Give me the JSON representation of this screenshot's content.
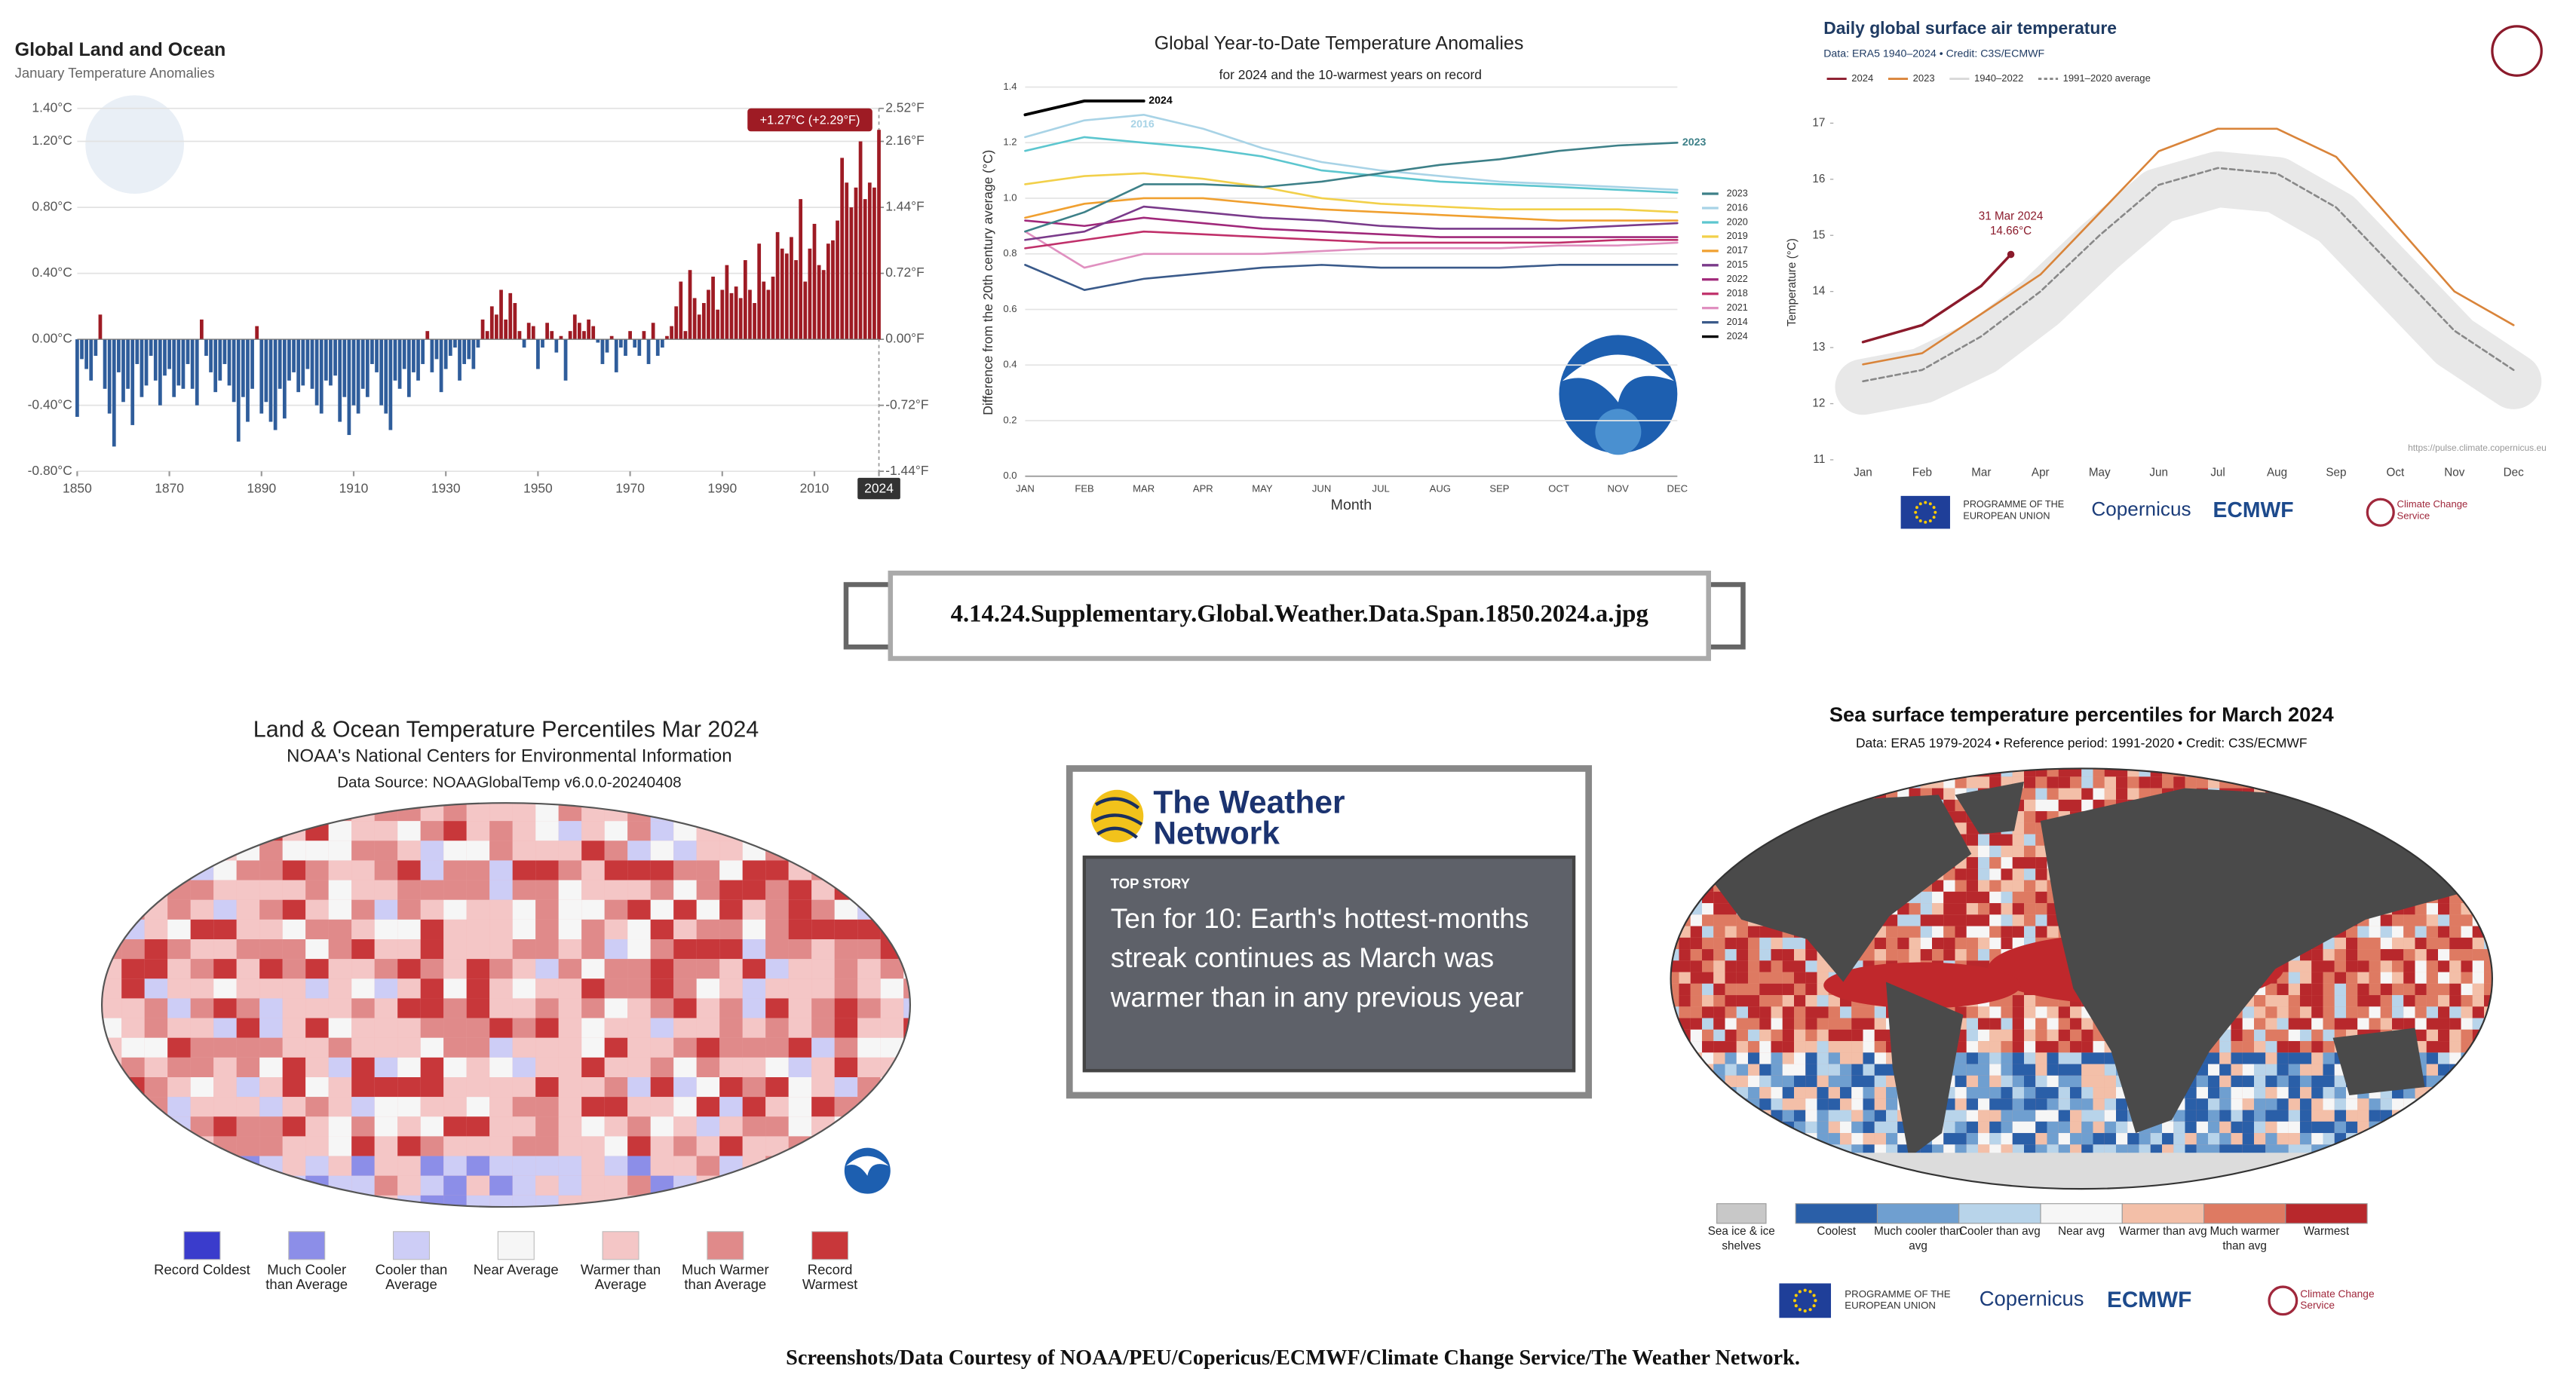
{
  "chart_data": [
    {
      "type": "bar",
      "title": "Global Land and Ocean",
      "subtitle": "January Temperature Anomalies",
      "x": [
        1850,
        1851,
        1852,
        1853,
        1854,
        1855,
        1856,
        1857,
        1858,
        1859,
        1860,
        1861,
        1862,
        1863,
        1864,
        1865,
        1866,
        1867,
        1868,
        1869,
        1870,
        1871,
        1872,
        1873,
        1874,
        1875,
        1876,
        1877,
        1878,
        1879,
        1880,
        1881,
        1882,
        1883,
        1884,
        1885,
        1886,
        1887,
        1888,
        1889,
        1890,
        1891,
        1892,
        1893,
        1894,
        1895,
        1896,
        1897,
        1898,
        1899,
        1900,
        1901,
        1902,
        1903,
        1904,
        1905,
        1906,
        1907,
        1908,
        1909,
        1910,
        1911,
        1912,
        1913,
        1914,
        1915,
        1916,
        1917,
        1918,
        1919,
        1920,
        1921,
        1922,
        1923,
        1924,
        1925,
        1926,
        1927,
        1928,
        1929,
        1930,
        1931,
        1932,
        1933,
        1934,
        1935,
        1936,
        1937,
        1938,
        1939,
        1940,
        1941,
        1942,
        1943,
        1944,
        1945,
        1946,
        1947,
        1948,
        1949,
        1950,
        1951,
        1952,
        1953,
        1954,
        1955,
        1956,
        1957,
        1958,
        1959,
        1960,
        1961,
        1962,
        1963,
        1964,
        1965,
        1966,
        1967,
        1968,
        1969,
        1970,
        1971,
        1972,
        1973,
        1974,
        1975,
        1976,
        1977,
        1978,
        1979,
        1980,
        1981,
        1982,
        1983,
        1984,
        1985,
        1986,
        1987,
        1988,
        1989,
        1990,
        1991,
        1992,
        1993,
        1994,
        1995,
        1996,
        1997,
        1998,
        1999,
        2000,
        2001,
        2002,
        2003,
        2004,
        2005,
        2006,
        2007,
        2008,
        2009,
        2010,
        2011,
        2012,
        2013,
        2014,
        2015,
        2016,
        2017,
        2018,
        2019,
        2020,
        2021,
        2022,
        2023,
        2024
      ],
      "values": [
        -0.47,
        -0.12,
        -0.18,
        -0.25,
        -0.1,
        0.15,
        -0.3,
        -0.45,
        -0.65,
        -0.2,
        -0.38,
        -0.3,
        -0.52,
        -0.15,
        -0.35,
        -0.28,
        -0.1,
        -0.25,
        -0.4,
        -0.22,
        -0.18,
        -0.35,
        -0.28,
        -0.3,
        -0.15,
        -0.3,
        -0.4,
        0.12,
        -0.1,
        -0.2,
        -0.32,
        -0.25,
        -0.15,
        -0.28,
        -0.38,
        -0.62,
        -0.35,
        -0.5,
        -0.3,
        0.08,
        -0.45,
        -0.38,
        -0.5,
        -0.55,
        -0.3,
        -0.48,
        -0.25,
        -0.2,
        -0.32,
        -0.28,
        -0.18,
        -0.3,
        -0.4,
        -0.45,
        -0.25,
        -0.28,
        -0.22,
        -0.5,
        -0.35,
        -0.58,
        -0.4,
        -0.45,
        -0.3,
        -0.35,
        -0.15,
        -0.2,
        -0.4,
        -0.45,
        -0.55,
        -0.25,
        -0.3,
        -0.18,
        -0.35,
        -0.2,
        -0.25,
        -0.15,
        0.05,
        -0.2,
        -0.12,
        -0.32,
        -0.18,
        -0.1,
        -0.05,
        -0.25,
        -0.15,
        -0.12,
        -0.18,
        -0.05,
        0.12,
        0.05,
        0.2,
        0.15,
        0.3,
        0.12,
        0.28,
        0.22,
        0.05,
        -0.05,
        0.1,
        0.08,
        -0.18,
        -0.05,
        0.1,
        0.05,
        -0.08,
        0.02,
        -0.25,
        0.05,
        0.15,
        0.1,
        0.05,
        0.12,
        0.08,
        -0.02,
        -0.15,
        -0.08,
        0.02,
        -0.2,
        -0.05,
        -0.1,
        0.05,
        -0.05,
        -0.1,
        0.05,
        -0.15,
        0.1,
        -0.1,
        -0.05,
        0.02,
        0.08,
        0.2,
        0.35,
        0.05,
        0.42,
        0.25,
        0.15,
        0.22,
        0.3,
        0.38,
        0.18,
        0.3,
        0.45,
        0.28,
        0.32,
        0.25,
        0.48,
        0.3,
        0.22,
        0.58,
        0.35,
        0.3,
        0.38,
        0.65,
        0.55,
        0.52,
        0.62,
        0.48,
        0.85,
        0.35,
        0.55,
        0.7,
        0.45,
        0.42,
        0.58,
        0.6,
        0.72,
        1.1,
        0.95,
        0.8,
        0.92,
        1.2,
        0.85,
        0.95,
        0.92,
        1.27
      ],
      "positive_color": "#9e1b24",
      "negative_color": "#2f5d9b",
      "xlim": [
        1850,
        2024
      ],
      "xticks": [
        1850,
        1870,
        1890,
        1910,
        1930,
        1950,
        1970,
        1990,
        2010,
        2024
      ],
      "ylim": [
        -0.8,
        1.4
      ],
      "yticks": [
        {
          "value": -0.8,
          "label": "-0.80°C"
        },
        {
          "value": -0.4,
          "label": "-0.40°C"
        },
        {
          "value": 0,
          "label": "0.00°C"
        },
        {
          "value": 0.4,
          "label": "0.40°C"
        },
        {
          "value": 0.8,
          "label": "0.80°C"
        },
        {
          "value": 1.2,
          "label": "1.20°C"
        },
        {
          "value": 1.4,
          "label": "1.40°C"
        }
      ],
      "y2lim": [
        -1.44,
        2.52
      ],
      "y2ticks": [
        {
          "value": -1.44,
          "label": "-1.44°F"
        },
        {
          "value": -0.72,
          "label": "-0.72°F"
        },
        {
          "value": 0,
          "label": "0.00°F"
        },
        {
          "value": 0.72,
          "label": "0.72°F"
        },
        {
          "value": 1.44,
          "label": "1.44°F"
        },
        {
          "value": 2.16,
          "label": "2.16°F"
        },
        {
          "value": 2.52,
          "label": "2.52°F"
        }
      ],
      "annotation": "+1.27°C (+2.29°F)",
      "grid": true
    },
    {
      "type": "line",
      "title": "Global Year-to-Date Temperature Anomalies",
      "subtitle": "for 2024 and the 10-warmest years on record",
      "xlabel": "Month",
      "ylabel": "Difference from the 20th century average (°C)",
      "categories": [
        "JAN",
        "FEB",
        "MAR",
        "APR",
        "MAY",
        "JUN",
        "JUL",
        "AUG",
        "SEP",
        "OCT",
        "NOV",
        "DEC"
      ],
      "series": [
        {
          "name": "2023",
          "color": "#3d8088",
          "values": [
            0.88,
            0.95,
            1.05,
            1.05,
            1.04,
            1.06,
            1.09,
            1.12,
            1.14,
            1.17,
            1.19,
            1.2
          ]
        },
        {
          "name": "2016",
          "color": "#a8d3e6",
          "values": [
            1.22,
            1.28,
            1.3,
            1.25,
            1.18,
            1.13,
            1.1,
            1.08,
            1.06,
            1.05,
            1.04,
            1.03
          ]
        },
        {
          "name": "2020",
          "color": "#5cc6cf",
          "values": [
            1.17,
            1.22,
            1.2,
            1.18,
            1.15,
            1.1,
            1.08,
            1.06,
            1.05,
            1.04,
            1.03,
            1.02
          ]
        },
        {
          "name": "2019",
          "color": "#f2d04a",
          "values": [
            1.05,
            1.08,
            1.09,
            1.07,
            1.04,
            1.0,
            0.98,
            0.97,
            0.96,
            0.96,
            0.96,
            0.95
          ]
        },
        {
          "name": "2017",
          "color": "#f0a030",
          "values": [
            0.93,
            0.98,
            1.0,
            1.0,
            0.98,
            0.96,
            0.95,
            0.94,
            0.93,
            0.92,
            0.92,
            0.92
          ]
        },
        {
          "name": "2015",
          "color": "#7a3a8a",
          "values": [
            0.85,
            0.88,
            0.97,
            0.95,
            0.93,
            0.92,
            0.9,
            0.89,
            0.89,
            0.89,
            0.9,
            0.91
          ]
        },
        {
          "name": "2022",
          "color": "#a0287a",
          "values": [
            0.92,
            0.9,
            0.93,
            0.91,
            0.89,
            0.88,
            0.87,
            0.86,
            0.86,
            0.86,
            0.86,
            0.86
          ]
        },
        {
          "name": "2018",
          "color": "#c0306a",
          "values": [
            0.82,
            0.85,
            0.88,
            0.87,
            0.86,
            0.85,
            0.84,
            0.84,
            0.84,
            0.84,
            0.85,
            0.85
          ]
        },
        {
          "name": "2021",
          "color": "#e090c0",
          "values": [
            0.88,
            0.75,
            0.8,
            0.8,
            0.8,
            0.81,
            0.82,
            0.82,
            0.82,
            0.83,
            0.83,
            0.84
          ]
        },
        {
          "name": "2014",
          "color": "#3a5a8a",
          "values": [
            0.76,
            0.67,
            0.71,
            0.73,
            0.75,
            0.76,
            0.75,
            0.75,
            0.75,
            0.76,
            0.76,
            0.76
          ]
        },
        {
          "name": "2024",
          "color": "#000000",
          "values": [
            1.3,
            1.35,
            1.35,
            null,
            null,
            null,
            null,
            null,
            null,
            null,
            null,
            null
          ]
        }
      ],
      "labeled_series": [
        "2024",
        "2016",
        "2023"
      ],
      "ylim": [
        0,
        1.4
      ],
      "yticks": [
        {
          "value": 0,
          "label": "0.0"
        },
        {
          "value": 0.2,
          "label": "0.2"
        },
        {
          "value": 0.4,
          "label": "0.4"
        },
        {
          "value": 0.6,
          "label": "0.6"
        },
        {
          "value": 0.8,
          "label": "0.8"
        },
        {
          "value": 1.0,
          "label": "1.0"
        },
        {
          "value": 1.2,
          "label": "1.2"
        },
        {
          "value": 1.4,
          "label": "1.4"
        }
      ],
      "legend": "right",
      "grid": true
    },
    {
      "type": "line",
      "title": "Daily global surface air temperature",
      "subtitle": "Data: ERA5 1940–2024 • Credit: C3S/ECMWF",
      "ylabel": "Temperature (°C)",
      "categories": [
        "Jan",
        "Feb",
        "Mar",
        "Apr",
        "May",
        "Jun",
        "Jul",
        "Aug",
        "Sep",
        "Oct",
        "Nov",
        "Dec"
      ],
      "series": [
        {
          "name": "2024",
          "color": "#8b1a2b",
          "values": [
            13.1,
            13.4,
            14.1,
            null,
            null,
            null,
            null,
            null,
            null,
            null,
            null,
            null
          ]
        },
        {
          "name": "2023",
          "color": "#d9843a",
          "values": [
            12.7,
            12.9,
            13.6,
            14.3,
            15.4,
            16.5,
            16.9,
            16.9,
            16.4,
            15.2,
            14.0,
            13.4
          ]
        },
        {
          "name": "1940–2022",
          "color": "#d8d8d8",
          "band": true,
          "values": [
            12.3,
            12.5,
            13.0,
            13.8,
            14.8,
            15.7,
            16.0,
            15.9,
            15.3,
            14.2,
            13.1,
            12.4
          ]
        },
        {
          "name": "1991–2020 average",
          "color": "#888888",
          "dash": true,
          "values": [
            12.4,
            12.6,
            13.2,
            14.0,
            15.0,
            15.9,
            16.2,
            16.1,
            15.5,
            14.4,
            13.3,
            12.6
          ]
        }
      ],
      "annotation": {
        "label": "31 Mar 2024",
        "value": 14.66,
        "value_label": "14.66°C"
      },
      "ylim": [
        11,
        17
      ],
      "yticks": [
        11,
        12,
        13,
        14,
        15,
        16,
        17
      ],
      "legend": "top",
      "grid": false,
      "source_url": "https://pulse.climate.copernicus.eu",
      "logos": [
        "PROGRAMME OF THE EUROPEAN UNION",
        "Copernicus",
        "ECMWF",
        "Climate Change Service"
      ]
    }
  ],
  "caption_box": "4.14.24.Supplementary.Global.Weather.Data.Span.1850.2024.a.jpg",
  "land_ocean_map": {
    "title": "Land & Ocean Temperature Percentiles Mar 2024",
    "subtitle": "NOAA's National Centers for Environmental Information",
    "source": "Data Source: NOAAGlobalTemp v6.0.0-20240408",
    "legend": [
      {
        "label": "Record Coldest",
        "color": "#3a3ccc"
      },
      {
        "label": "Much Cooler than Average",
        "color": "#8c8ee8"
      },
      {
        "label": "Cooler than Average",
        "color": "#cdcdf6"
      },
      {
        "label": "Near Average",
        "color": "#f6f6f6"
      },
      {
        "label": "Warmer than Average",
        "color": "#f4c6c6"
      },
      {
        "label": "Much Warmer than Average",
        "color": "#e08a8a"
      },
      {
        "label": "Record Warmest",
        "color": "#c8373a"
      }
    ]
  },
  "news_card": {
    "brand": "The Weather Network",
    "tag": "TOP STORY",
    "headline": "Ten for 10: Earth's hottest-months streak continues as March was warmer than in any previous year"
  },
  "sst_map": {
    "title": "Sea surface temperature percentiles for March 2024",
    "subtitle": "Data: ERA5 1979-2024 • Reference period: 1991-2020 • Credit: C3S/ECMWF",
    "legend": [
      {
        "label": "Sea ice & ice shelves",
        "color": "#c8c8c8"
      },
      {
        "label": "Coolest",
        "color": "#2a5fa8"
      },
      {
        "label": "Much cooler than avg",
        "color": "#6f9fd0"
      },
      {
        "label": "Cooler than avg",
        "color": "#b8d4ea"
      },
      {
        "label": "Near avg",
        "color": "#f6f6f6"
      },
      {
        "label": "Warmer than avg",
        "color": "#f3bfa8"
      },
      {
        "label": "Much warmer than avg",
        "color": "#de7a62"
      },
      {
        "label": "Warmest",
        "color": "#b8282c"
      }
    ],
    "logos": [
      "PROGRAMME OF THE EUROPEAN UNION",
      "Copernicus",
      "ECMWF",
      "Climate Change Service"
    ]
  },
  "footer": "Screenshots/Data Courtesy of NOAA/PEU/Copericus/ECMWF/Climate Change Service/The Weather Network."
}
